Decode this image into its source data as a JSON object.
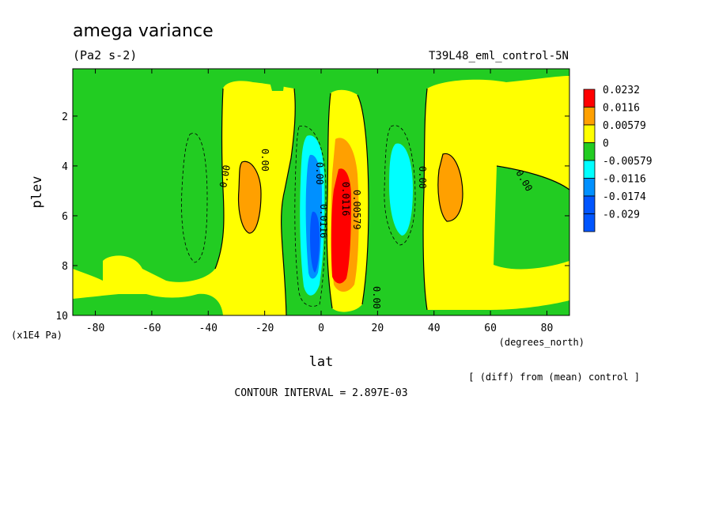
{
  "chart_data": {
    "type": "heatmap",
    "title": "amega variance",
    "units": "(Pa2 s-2)",
    "run_label": "T39L48_eml_control-5N",
    "xlabel": "lat",
    "x_units": "(degrees_north)",
    "ylabel": "plev",
    "y_units": "(x1E4 Pa)",
    "x_ticks": [
      "-80",
      "-60",
      "-40",
      "-20",
      "0",
      "20",
      "40",
      "60",
      "80"
    ],
    "y_ticks": [
      "2",
      "4",
      "6",
      "8",
      "10"
    ],
    "xlim": [
      -88,
      88
    ],
    "ylim": [
      10,
      0.1
    ],
    "contour_interval_text": "CONTOUR INTERVAL = 2.897E-03",
    "diff_note": "[ (diff) from (mean) control ]",
    "colorbar": [
      {
        "label": "0.0232",
        "color": "#ff0000"
      },
      {
        "label": "0.0116",
        "color": "#ffa000"
      },
      {
        "label": "0.00579",
        "color": "#ffff00"
      },
      {
        "label": "0",
        "color": "#22cc22"
      },
      {
        "label": "-0.00579",
        "color": "#00ffff"
      },
      {
        "label": "-0.0116",
        "color": "#0090ff"
      },
      {
        "label": "-0.0174",
        "color": "#0055ff"
      },
      {
        "label": "-0.029",
        "color": "#0055ff"
      }
    ],
    "contour_labels": [
      "0.00",
      "0.00",
      "0.00",
      "0.00",
      "0.00",
      "0.00",
      "0.0116",
      "0.00579",
      "0.0116"
    ]
  }
}
